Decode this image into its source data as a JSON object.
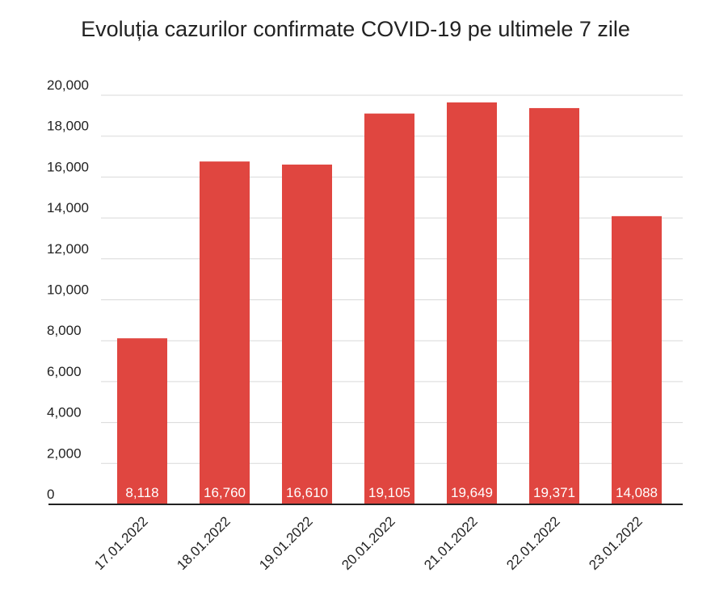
{
  "chart_data": {
    "type": "bar",
    "title": "Evoluția cazurilor confirmate COVID-19 pe ultimele 7 zile",
    "categories": [
      "17.01.2022",
      "18.01.2022",
      "19.01.2022",
      "20.01.2022",
      "21.01.2022",
      "22.01.2022",
      "23.01.2022"
    ],
    "values": [
      8118,
      16760,
      16610,
      19105,
      19649,
      19371,
      14088
    ],
    "value_labels": [
      "8,118",
      "16,760",
      "16,610",
      "19,105",
      "19,649",
      "19,371",
      "14,088"
    ],
    "color": "#e04640",
    "ylim": [
      0,
      20000
    ],
    "yticks": [
      0,
      {
        "value": 2000,
        "label": "2,000"
      },
      {
        "value": 4000,
        "label": "4,000"
      },
      {
        "value": 6000,
        "label": "6,000"
      },
      {
        "value": 8000,
        "label": "8,000"
      },
      {
        "value": 10000,
        "label": "10,000"
      },
      {
        "value": 12000,
        "label": "12,000"
      },
      {
        "value": 14000,
        "label": "14,000"
      },
      {
        "value": 16000,
        "label": "16,000"
      },
      {
        "value": 18000,
        "label": "18,000"
      },
      {
        "value": 20000,
        "label": "20,000"
      }
    ],
    "grid": true
  }
}
